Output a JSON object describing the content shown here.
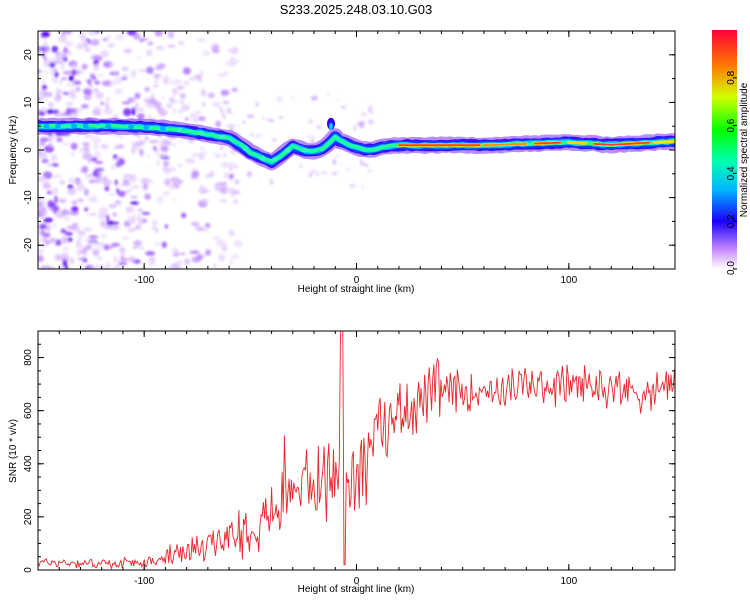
{
  "title": "S233.2025.248.03.10.G03",
  "chart_data": [
    {
      "type": "heatmap",
      "name": "spectrogram",
      "xlabel": "Height of straight line (km)",
      "ylabel": "Frequency (Hz)",
      "xlim": [
        -150,
        150
      ],
      "ylim": [
        -25,
        25
      ],
      "xticks": [
        -100,
        0,
        100
      ],
      "yticks": [
        -20,
        -10,
        0,
        10,
        20
      ],
      "ridge_frequency_hz": {
        "x": [
          -145,
          -130,
          -120,
          -110,
          -100,
          -90,
          -80,
          -70,
          -60,
          -55,
          -50,
          -45,
          -40,
          -35,
          -30,
          -25,
          -20,
          -15,
          -10,
          -8,
          -5,
          0,
          5,
          10,
          15,
          20,
          40,
          60,
          80,
          100,
          120,
          140,
          150
        ],
        "y": [
          5,
          5,
          5,
          5,
          4.8,
          4.5,
          4,
          3.3,
          2.5,
          1.2,
          -0.5,
          -1.5,
          -2.5,
          -1.0,
          0.8,
          0.0,
          -0.3,
          0.5,
          2.8,
          2.0,
          1.4,
          0.5,
          0.0,
          0.3,
          0.8,
          1.0,
          1.0,
          1.0,
          1.3,
          1.6,
          1.1,
          1.6,
          1.8
        ]
      },
      "colorbar": {
        "label": "Normalized spectral amplitude",
        "range": [
          0.0,
          1.0
        ],
        "ticks": [
          "0.0",
          "0.2",
          "0.4",
          "0.6",
          "0.8"
        ],
        "colormap": "rainbow (lavender to red)"
      }
    },
    {
      "type": "line",
      "name": "snr",
      "xlabel": "Height of straight line (km)",
      "ylabel": "SNR (10 * v/v)",
      "xlim": [
        -150,
        150
      ],
      "ylim": [
        0,
        900
      ],
      "xticks": [
        -100,
        0,
        100
      ],
      "yticks": [
        0,
        200,
        400,
        600,
        800
      ],
      "color": "#e8262b",
      "trend": {
        "x": [
          -150,
          -120,
          -100,
          -90,
          -80,
          -70,
          -60,
          -50,
          -40,
          -30,
          -20,
          -10,
          -5,
          0,
          10,
          20,
          30,
          40,
          60,
          80,
          100,
          120,
          130,
          140,
          145,
          150
        ],
        "y": [
          30,
          25,
          25,
          40,
          60,
          90,
          130,
          170,
          220,
          280,
          330,
          360,
          330,
          380,
          520,
          600,
          640,
          670,
          680,
          690,
          700,
          690,
          680,
          660,
          700,
          720
        ]
      },
      "spike": {
        "x": -7,
        "peak": 900,
        "trough": 20
      }
    }
  ]
}
